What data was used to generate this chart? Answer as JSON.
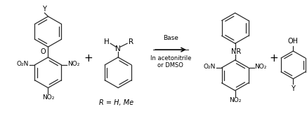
{
  "background_color": "#ffffff",
  "line_color": "#2a2a2a",
  "text_color": "#000000",
  "arrow_color": "#000000",
  "fig_width": 4.37,
  "fig_height": 1.66,
  "dpi": 100,
  "reaction_text_line1": "Base",
  "reaction_text_line2": "In acetonitrile",
  "reaction_text_line3": "or DMSO",
  "r_label": "R = H, Me"
}
